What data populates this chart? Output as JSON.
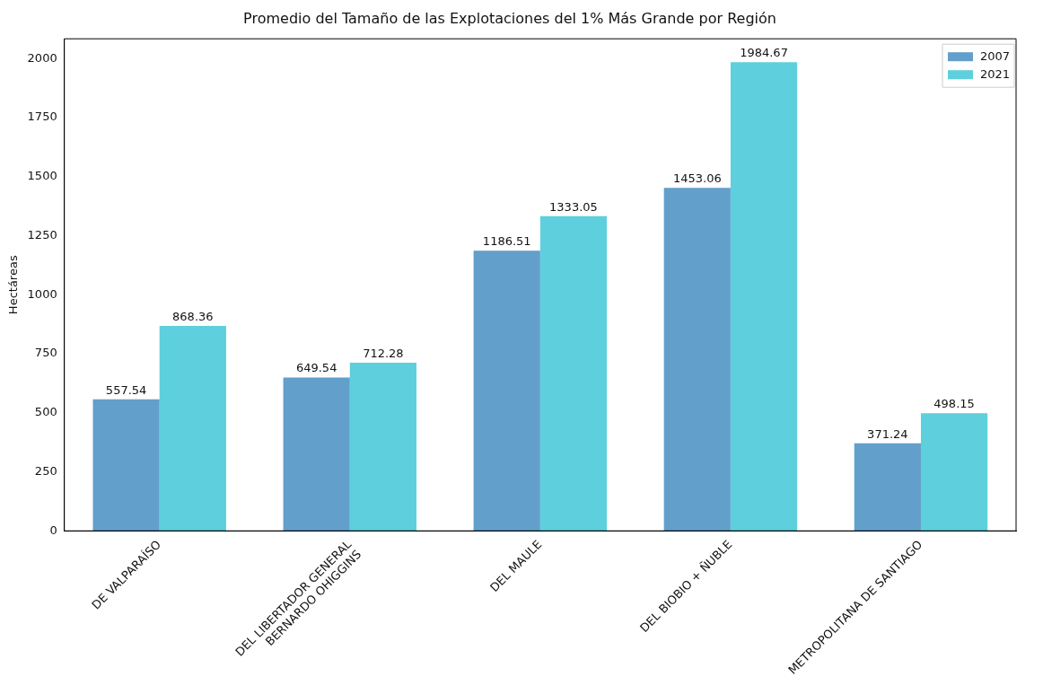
{
  "chart_data": {
    "type": "bar",
    "title": "Promedio del Tamaño de las Explotaciones del 1% Más Grande por Región",
    "ylabel": "Hectáreas",
    "categories": [
      "DE VALPARAÍSO",
      "DEL LIBERTADOR GENERAL\nBERNARDO OHIGGINS",
      "DEL MAULE",
      "DEL BIOBIO + ÑUBLE",
      "METROPOLITANA DE SANTIAGO"
    ],
    "series": [
      {
        "name": "2007",
        "color": "#629fca",
        "values": [
          557.54,
          649.54,
          1186.51,
          1453.06,
          371.24
        ]
      },
      {
        "name": "2021",
        "color": "#5ecfdc",
        "values": [
          868.36,
          712.28,
          1333.05,
          1984.67,
          498.15
        ]
      }
    ],
    "ylim": [
      0,
      2084
    ],
    "yticks": [
      0,
      250,
      500,
      750,
      1000,
      1250,
      1500,
      1750,
      2000
    ],
    "grid": false,
    "legend": "top right",
    "data_labels": true
  }
}
